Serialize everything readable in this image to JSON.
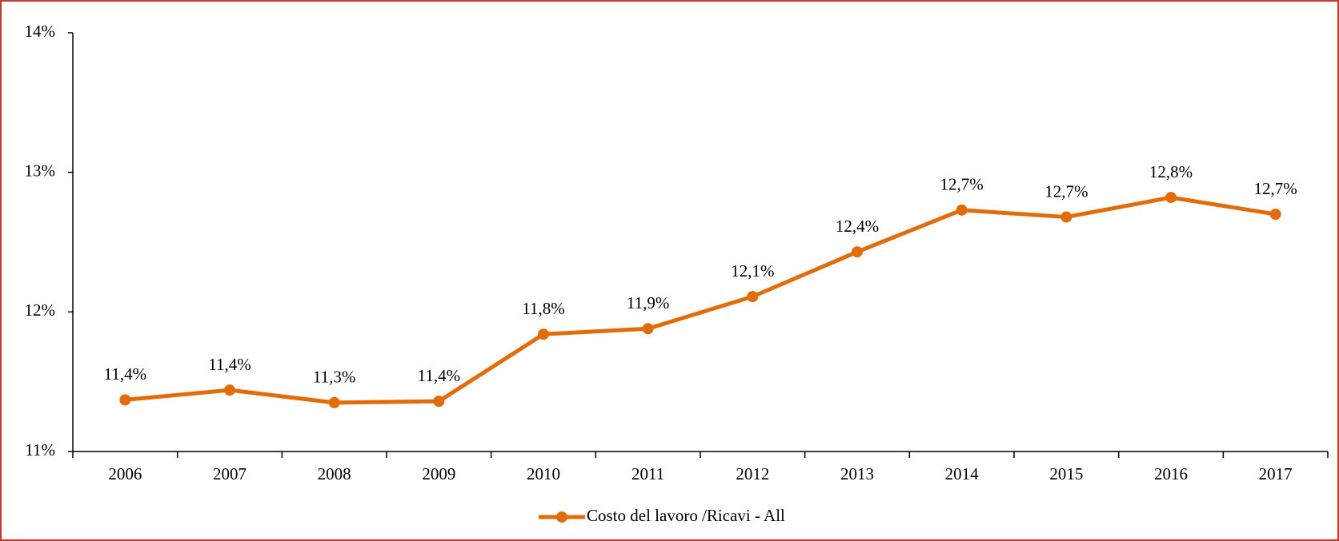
{
  "chart_data": {
    "type": "line",
    "categories": [
      "2006",
      "2007",
      "2008",
      "2009",
      "2010",
      "2011",
      "2012",
      "2013",
      "2014",
      "2015",
      "2016",
      "2017"
    ],
    "series": [
      {
        "name": "Costo del lavoro /Ricavi - All",
        "color": "#e36c0a",
        "values": [
          11.37,
          11.44,
          11.35,
          11.36,
          11.84,
          11.88,
          12.11,
          12.43,
          12.73,
          12.68,
          12.82,
          12.7
        ],
        "value_labels": [
          "11,4%",
          "11,4%",
          "11,3%",
          "11,4%",
          "11,8%",
          "11,9%",
          "12,1%",
          "12,4%",
          "12,7%",
          "12,7%",
          "12,8%",
          "12,7%"
        ]
      }
    ],
    "ylim": [
      11,
      14
    ],
    "yticks": [
      {
        "value": 11,
        "label": "11%"
      },
      {
        "value": 12,
        "label": "12%"
      },
      {
        "value": 13,
        "label": "13%"
      },
      {
        "value": 14,
        "label": "14%"
      }
    ],
    "grid": false,
    "legend": "bottom"
  }
}
